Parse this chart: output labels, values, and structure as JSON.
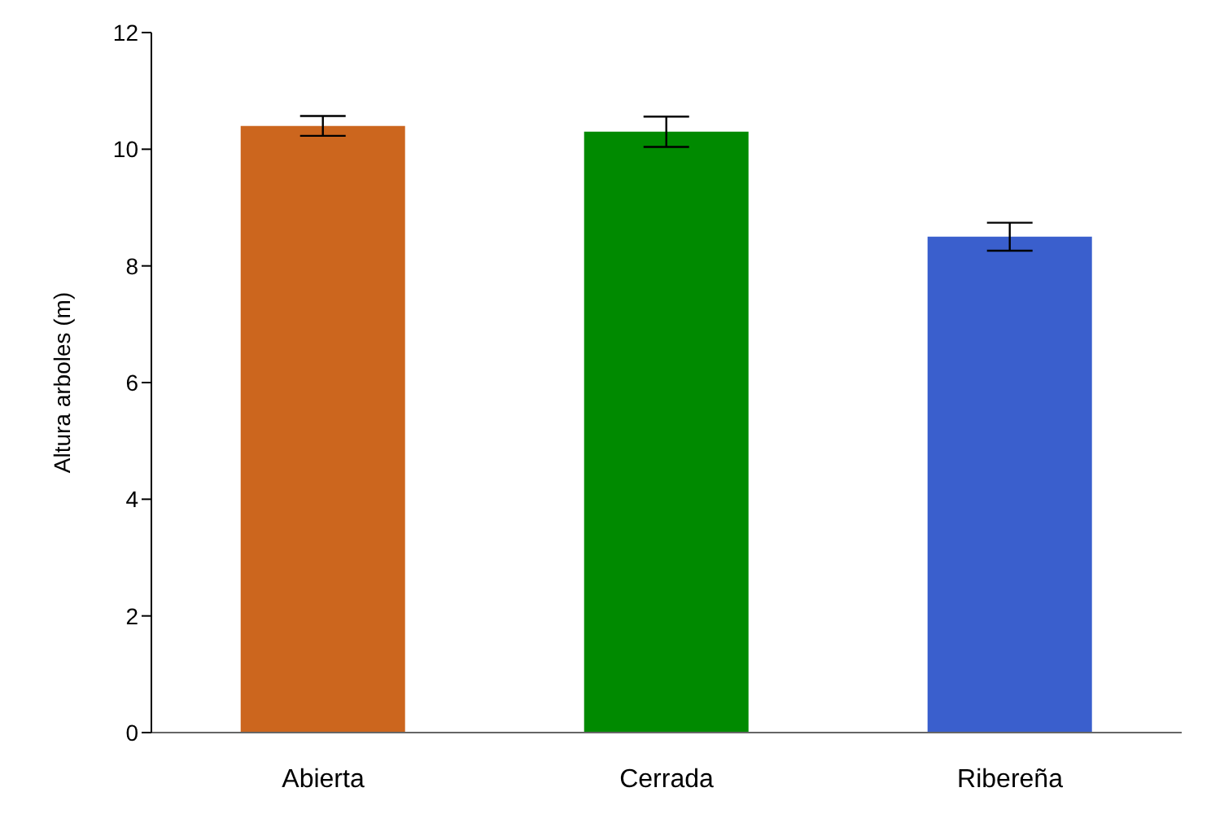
{
  "chart_data": {
    "type": "bar",
    "ylabel": "Altura arboles (m)",
    "categories": [
      "Abierta",
      "Cerrada",
      "Ribereña"
    ],
    "values": [
      10.4,
      10.3,
      8.5
    ],
    "colors": [
      "#cc661e",
      "#008a00",
      "#3a5fcd"
    ],
    "errors": [
      0.17,
      0.26,
      0.24
    ],
    "ylim": [
      0,
      12
    ],
    "yticks": [
      0,
      2,
      4,
      6,
      8,
      10,
      12
    ]
  }
}
